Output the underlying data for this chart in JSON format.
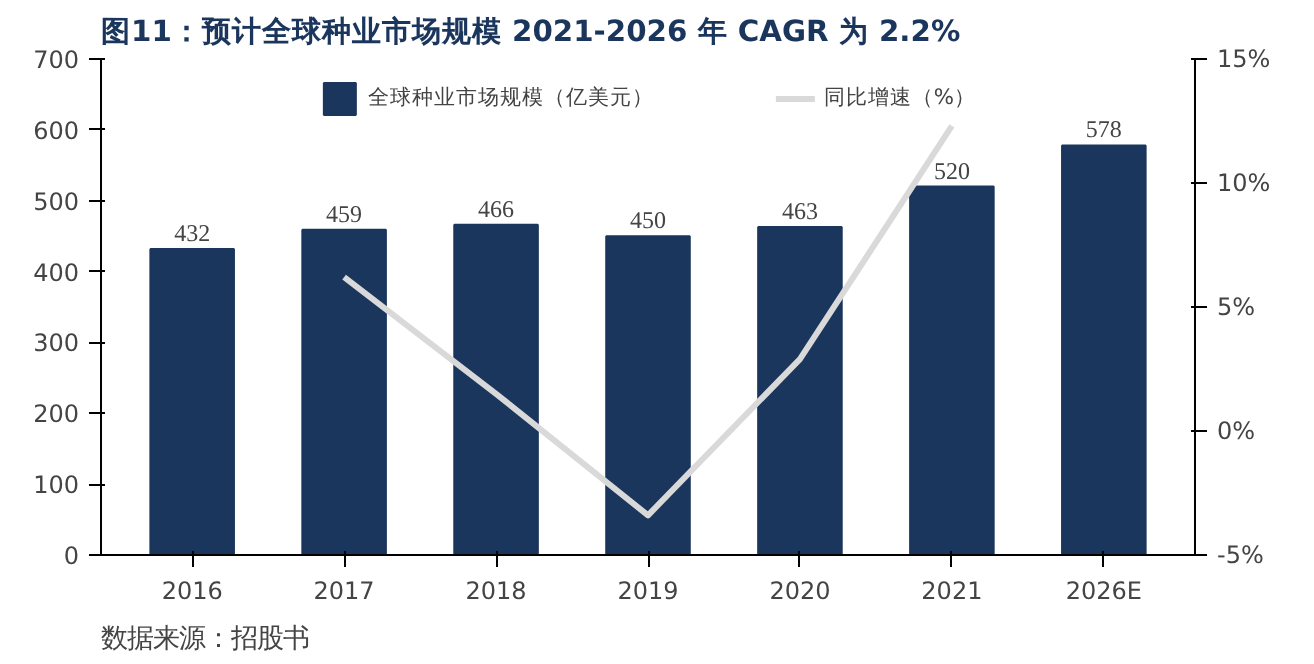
{
  "chart_data": {
    "type": "bar",
    "title": "图11：预计全球种业市场规模 2021-2026 年 CAGR 为 2.2%",
    "annotations": [
      "数据来源：招股书"
    ],
    "categories": [
      "2016",
      "2017",
      "2018",
      "2019",
      "2020",
      "2021",
      "2026E"
    ],
    "series": [
      {
        "name": "全球种业市场规模（亿美元）",
        "color": "#1b365d",
        "values": [
          432,
          459,
          466,
          450,
          463,
          520,
          578
        ],
        "value_labels": [
          "432",
          "459",
          "466",
          "450",
          "463",
          "520",
          "578"
        ]
      },
      {
        "name": "同比增速（%）",
        "type": "line",
        "axis": "y2",
        "color": "#d9d9d9",
        "values": [
          null,
          6.2,
          1.5,
          -3.4,
          2.9,
          12.3,
          null
        ]
      }
    ],
    "ylim": [
      0,
      700
    ],
    "yticks": [
      0,
      100,
      200,
      300,
      400,
      500,
      600,
      700
    ],
    "y2lim": [
      -5,
      15
    ],
    "y2ticks": [
      {
        "value": -5,
        "label": "-5%"
      },
      {
        "value": 0,
        "label": "0%"
      },
      {
        "value": 5,
        "label": "5%"
      },
      {
        "value": 10,
        "label": "10%"
      },
      {
        "value": 15,
        "label": "15%"
      }
    ],
    "grid": false,
    "legend": "top"
  }
}
